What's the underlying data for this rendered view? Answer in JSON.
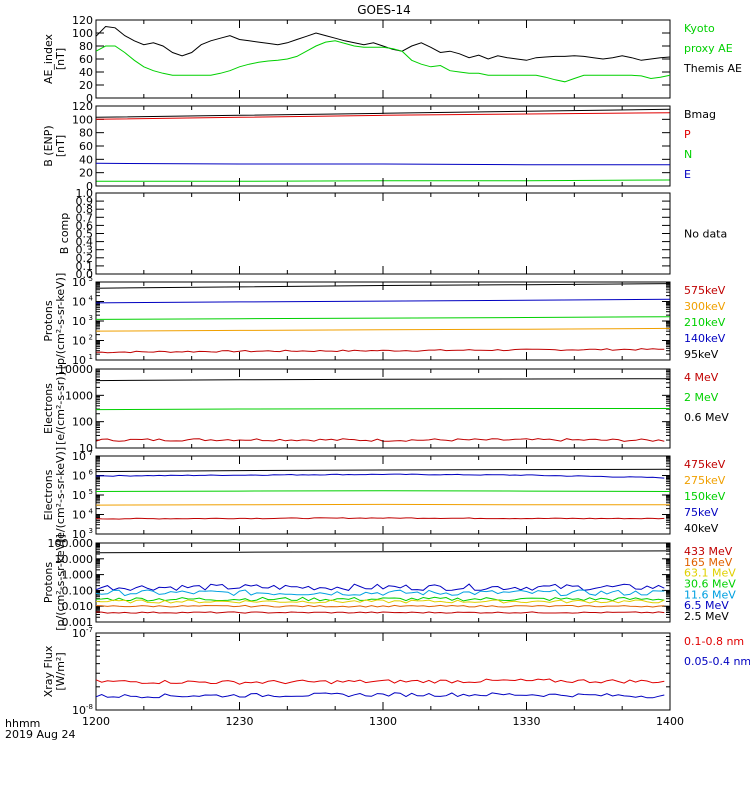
{
  "title": "GOES-14",
  "footer": {
    "line1": "hhmm",
    "line2": "2019 Aug 24"
  },
  "x_axis": {
    "ticks": [
      "1200",
      "1230",
      "1300",
      "1330",
      "1400"
    ],
    "range_minutes": [
      0,
      120
    ]
  },
  "chart_data": [
    {
      "id": "ae",
      "type": "line",
      "ylabel": [
        "AE_index",
        "[nT]"
      ],
      "yscale": "linear",
      "ylim": [
        0,
        120
      ],
      "ticks": [
        0,
        20,
        40,
        60,
        80,
        100,
        120
      ],
      "tick_labels": [
        "0",
        "20",
        "40",
        "60",
        "80",
        "100",
        "120"
      ],
      "legend": [
        {
          "text": "Kyoto",
          "color": "#00d000"
        },
        {
          "text": "proxy AE",
          "color": "#00d000"
        },
        {
          "text": "Themis AE",
          "color": "#000000"
        }
      ],
      "series": [
        {
          "name": "Themis AE",
          "color": "#000000",
          "x": [
            0,
            2,
            4,
            6,
            8,
            10,
            12,
            14,
            16,
            18,
            20,
            22,
            24,
            26,
            28,
            30,
            32,
            34,
            36,
            38,
            40,
            42,
            44,
            46,
            48,
            50,
            52,
            54,
            56,
            58,
            60,
            62,
            64,
            66,
            68,
            70,
            72,
            74,
            76,
            78,
            80,
            82,
            84,
            86,
            88,
            90,
            92,
            94,
            96,
            98,
            100,
            102,
            104,
            106,
            108,
            110,
            112,
            114,
            116,
            118,
            120
          ],
          "y": [
            95,
            110,
            108,
            96,
            88,
            82,
            85,
            80,
            70,
            65,
            70,
            82,
            88,
            92,
            96,
            90,
            88,
            86,
            84,
            82,
            85,
            90,
            95,
            100,
            96,
            92,
            88,
            85,
            82,
            85,
            80,
            75,
            72,
            80,
            85,
            78,
            70,
            72,
            68,
            62,
            66,
            60,
            65,
            62,
            60,
            58,
            62,
            63,
            64,
            64,
            65,
            64,
            62,
            60,
            62,
            65,
            62,
            58,
            60,
            62,
            63
          ]
        },
        {
          "name": "Kyoto proxy AE",
          "color": "#00d000",
          "x": [
            0,
            2,
            4,
            6,
            8,
            10,
            12,
            14,
            16,
            18,
            20,
            22,
            24,
            26,
            28,
            30,
            32,
            34,
            36,
            38,
            40,
            42,
            44,
            46,
            48,
            50,
            52,
            54,
            56,
            58,
            60,
            62,
            64,
            66,
            68,
            70,
            72,
            74,
            76,
            78,
            80,
            82,
            84,
            86,
            88,
            90,
            92,
            94,
            96,
            98,
            100,
            102,
            104,
            106,
            108,
            110,
            112,
            114,
            116,
            118,
            120
          ],
          "y": [
            72,
            80,
            80,
            70,
            58,
            48,
            42,
            38,
            35,
            35,
            35,
            35,
            35,
            38,
            42,
            48,
            52,
            55,
            57,
            58,
            60,
            64,
            72,
            80,
            86,
            88,
            84,
            80,
            78,
            78,
            78,
            76,
            72,
            58,
            52,
            48,
            50,
            42,
            40,
            38,
            38,
            35,
            35,
            35,
            35,
            35,
            35,
            32,
            28,
            25,
            30,
            35,
            35,
            35,
            35,
            35,
            35,
            34,
            30,
            32,
            35
          ]
        }
      ]
    },
    {
      "id": "bfield",
      "type": "line",
      "ylabel": [
        "B (ENP)",
        "[nT]"
      ],
      "yscale": "linear",
      "ylim": [
        0,
        120
      ],
      "ticks": [
        0,
        20,
        40,
        60,
        80,
        100,
        120
      ],
      "tick_labels": [
        "0",
        "20",
        "40",
        "60",
        "80",
        "100",
        "120"
      ],
      "legend": [
        {
          "text": "Bmag",
          "color": "#000000"
        },
        {
          "text": "P",
          "color": "#e00000"
        },
        {
          "text": "N",
          "color": "#00d000"
        },
        {
          "text": "E",
          "color": "#0000c0"
        }
      ],
      "series": [
        {
          "name": "Bmag",
          "color": "#000000",
          "x": [
            0,
            30,
            60,
            90,
            120
          ],
          "y": [
            103,
            106,
            109,
            112,
            115
          ]
        },
        {
          "name": "P",
          "color": "#e00000",
          "x": [
            0,
            30,
            60,
            90,
            120
          ],
          "y": [
            100,
            103,
            106,
            108,
            110
          ]
        },
        {
          "name": "N",
          "color": "#00d000",
          "x": [
            0,
            30,
            60,
            90,
            120
          ],
          "y": [
            7,
            7,
            8,
            8,
            9
          ]
        },
        {
          "name": "E",
          "color": "#0000c0",
          "x": [
            0,
            30,
            60,
            90,
            120
          ],
          "y": [
            34,
            33,
            33,
            32,
            32
          ]
        }
      ]
    },
    {
      "id": "bcomp",
      "type": "line",
      "ylabel": [
        "B comp"
      ],
      "yscale": "linear",
      "ylim": [
        0,
        1
      ],
      "ticks": [
        0,
        0.1,
        0.2,
        0.3,
        0.4,
        0.5,
        0.6,
        0.7,
        0.8,
        0.9,
        1.0
      ],
      "tick_labels": [
        "0.0",
        "0.1",
        "0.2",
        "0.3",
        "0.4",
        "0.5",
        "0.6",
        "0.7",
        "0.8",
        "0.9",
        "1.0"
      ],
      "legend": [
        {
          "text": "No data",
          "color": "#000000"
        }
      ],
      "series": []
    },
    {
      "id": "protons1",
      "type": "line",
      "ylabel": [
        "Protons",
        "[p/(cm²-s-sr-keV)]"
      ],
      "yscale": "log",
      "ylim": [
        1,
        5
      ],
      "ticks": [
        1,
        2,
        3,
        4,
        5
      ],
      "tick_labels": [
        "10",
        "10",
        "10",
        "10",
        "10"
      ],
      "tick_exponents": [
        "1",
        "2",
        "3",
        "4",
        "5"
      ],
      "legend": [
        {
          "text": "575keV",
          "color": "#c00000"
        },
        {
          "text": "300keV",
          "color": "#f0a000"
        },
        {
          "text": "210keV",
          "color": "#00d000"
        },
        {
          "text": "140keV",
          "color": "#0000c0"
        },
        {
          "text": "95keV",
          "color": "#000000"
        }
      ],
      "series": [
        {
          "name": "95keV",
          "color": "#000000",
          "x": [
            0,
            30,
            60,
            90,
            120
          ],
          "y": [
            4.68,
            4.75,
            4.82,
            4.86,
            4.92
          ]
        },
        {
          "name": "140keV",
          "color": "#0000c0",
          "x": [
            0,
            30,
            60,
            90,
            120
          ],
          "y": [
            3.93,
            3.98,
            4.02,
            4.06,
            4.12
          ]
        },
        {
          "name": "210keV",
          "color": "#00d000",
          "x": [
            0,
            30,
            60,
            90,
            120
          ],
          "y": [
            3.08,
            3.12,
            3.15,
            3.18,
            3.22
          ]
        },
        {
          "name": "300keV",
          "color": "#f0a000",
          "x": [
            0,
            30,
            60,
            90,
            120
          ],
          "y": [
            2.48,
            2.52,
            2.55,
            2.58,
            2.62
          ]
        },
        {
          "name": "575keV",
          "color": "#c00000",
          "x": [
            0,
            30,
            60,
            90,
            120
          ],
          "y": [
            1.4,
            1.45,
            1.48,
            1.52,
            1.55
          ],
          "noise": 0.04
        }
      ]
    },
    {
      "id": "electrons1",
      "type": "line",
      "ylabel": [
        "Electrons",
        "[e/(cm²-s-sr)]"
      ],
      "yscale": "log",
      "ylim": [
        1,
        4
      ],
      "ticks": [
        1,
        2,
        3,
        4
      ],
      "tick_labels": [
        "10",
        "100",
        "1000",
        "10000"
      ],
      "legend": [
        {
          "text": "4 MeV",
          "color": "#c00000"
        },
        {
          "text": "2 MeV",
          "color": "#00d000"
        },
        {
          "text": "0.6 MeV",
          "color": "#000000"
        }
      ],
      "series": [
        {
          "name": "0.6 MeV",
          "color": "#000000",
          "x": [
            0,
            30,
            60,
            90,
            120
          ],
          "y": [
            3.56,
            3.59,
            3.61,
            3.62,
            3.63
          ]
        },
        {
          "name": "2 MeV",
          "color": "#00d000",
          "x": [
            0,
            30,
            60,
            90,
            120
          ],
          "y": [
            2.46,
            2.48,
            2.49,
            2.5,
            2.5
          ]
        },
        {
          "name": "4 MeV",
          "color": "#c00000",
          "x": [
            0,
            30,
            60,
            90,
            120
          ],
          "y": [
            1.3,
            1.32,
            1.3,
            1.31,
            1.29
          ],
          "noise": 0.05
        }
      ]
    },
    {
      "id": "electrons2",
      "type": "line",
      "ylabel": [
        "Electrons",
        "[e/(cm²-s-sr-keV)]"
      ],
      "yscale": "log",
      "ylim": [
        3,
        7
      ],
      "ticks": [
        3,
        4,
        5,
        6,
        7
      ],
      "tick_labels": [
        "10",
        "10",
        "10",
        "10",
        "10"
      ],
      "tick_exponents": [
        "3",
        "4",
        "5",
        "6",
        "7"
      ],
      "legend": [
        {
          "text": "475keV",
          "color": "#c00000"
        },
        {
          "text": "275keV",
          "color": "#f0a000"
        },
        {
          "text": "150keV",
          "color": "#00d000"
        },
        {
          "text": "75keV",
          "color": "#0000c0"
        },
        {
          "text": "40keV",
          "color": "#000000"
        }
      ],
      "series": [
        {
          "name": "40keV",
          "color": "#000000",
          "x": [
            0,
            30,
            60,
            90,
            120
          ],
          "y": [
            6.2,
            6.25,
            6.28,
            6.3,
            6.32
          ]
        },
        {
          "name": "75keV",
          "color": "#0000c0",
          "x": [
            0,
            30,
            60,
            90,
            120
          ],
          "y": [
            5.98,
            6.02,
            6.06,
            6.02,
            5.88
          ],
          "noise": 0.02
        },
        {
          "name": "150keV",
          "color": "#00d000",
          "x": [
            0,
            30,
            60,
            90,
            120
          ],
          "y": [
            5.18,
            5.2,
            5.22,
            5.2,
            5.18
          ]
        },
        {
          "name": "275keV",
          "color": "#f0a000",
          "x": [
            0,
            30,
            60,
            90,
            120
          ],
          "y": [
            4.48,
            4.5,
            4.52,
            4.5,
            4.5
          ]
        },
        {
          "name": "475keV",
          "color": "#c00000",
          "x": [
            0,
            30,
            60,
            90,
            120
          ],
          "y": [
            3.78,
            3.8,
            3.82,
            3.8,
            3.79
          ],
          "noise": 0.02
        }
      ]
    },
    {
      "id": "protons2",
      "type": "line",
      "ylabel": [
        "Protons",
        "[p/(cm²-s-sr-keV)]"
      ],
      "yscale": "log",
      "ylim": [
        -3,
        2
      ],
      "ticks": [
        -3,
        -2,
        -1,
        0,
        1,
        2
      ],
      "tick_labels": [
        "0.001",
        "0.010",
        "0.100",
        "1.000",
        "10.000",
        "100.000"
      ],
      "legend": [
        {
          "text": "433 MeV",
          "color": "#c00000"
        },
        {
          "text": "165 MeV",
          "color": "#e06000"
        },
        {
          "text": "63.1 MeV",
          "color": "#e0d000"
        },
        {
          "text": "30.6 MeV",
          "color": "#00d000"
        },
        {
          "text": "11.6 MeV",
          "color": "#00a0e0"
        },
        {
          "text": "6.5 MeV",
          "color": "#0000c0"
        },
        {
          "text": "2.5 MeV",
          "color": "#000000"
        }
      ],
      "series": [
        {
          "name": "2.5 MeV",
          "color": "#000000",
          "x": [
            0,
            30,
            60,
            90,
            120
          ],
          "y": [
            1.38,
            1.42,
            1.45,
            1.48,
            1.5
          ]
        },
        {
          "name": "6.5 MeV",
          "color": "#0000c0",
          "x": [
            0,
            30,
            60,
            90,
            120
          ],
          "y": [
            -0.8,
            -0.8,
            -0.8,
            -0.8,
            -0.8
          ],
          "noise": 0.2
        },
        {
          "name": "11.6 MeV",
          "color": "#00a0e0",
          "x": [
            0,
            30,
            60,
            90,
            120
          ],
          "y": [
            -1.15,
            -1.15,
            -1.15,
            -1.15,
            -1.15
          ],
          "noise": 0.18
        },
        {
          "name": "30.6 MeV",
          "color": "#00d000",
          "x": [
            0,
            30,
            60,
            90,
            120
          ],
          "y": [
            -1.55,
            -1.55,
            -1.55,
            -1.55,
            -1.55
          ],
          "noise": 0.12
        },
        {
          "name": "63.1 MeV",
          "color": "#e0d000",
          "x": [
            0,
            30,
            60,
            90,
            120
          ],
          "y": [
            -1.7,
            -1.7,
            -1.7,
            -1.7,
            -1.7
          ],
          "noise": 0.1
        },
        {
          "name": "165 MeV",
          "color": "#e06000",
          "x": [
            0,
            30,
            60,
            90,
            120
          ],
          "y": [
            -2.0,
            -2.0,
            -2.0,
            -2.0,
            -2.0
          ],
          "noise": 0.05
        },
        {
          "name": "433 MeV",
          "color": "#c00000",
          "x": [
            0,
            30,
            60,
            90,
            120
          ],
          "y": [
            -2.4,
            -2.4,
            -2.4,
            -2.4,
            -2.4
          ],
          "noise": 0.04
        }
      ]
    },
    {
      "id": "xray",
      "type": "line",
      "ylabel": [
        "Xray Flux",
        "[W/m²]"
      ],
      "yscale": "log",
      "ylim": [
        -8,
        -7
      ],
      "ticks": [
        -8,
        -7
      ],
      "tick_labels": [
        "10",
        "10"
      ],
      "tick_exponents": [
        "-8",
        "-7"
      ],
      "legend": [
        {
          "text": "0.1-0.8 nm",
          "color": "#e00000"
        },
        {
          "text": "0.05-0.4 nm",
          "color": "#0000c0"
        }
      ],
      "series": [
        {
          "name": "0.1-0.8 nm",
          "color": "#e00000",
          "x": [
            0,
            30,
            60,
            90,
            120
          ],
          "y": [
            -7.63,
            -7.64,
            -7.63,
            -7.62,
            -7.63
          ],
          "noise": 0.025
        },
        {
          "name": "0.05-0.4 nm",
          "color": "#0000c0",
          "x": [
            0,
            30,
            60,
            90,
            120
          ],
          "y": [
            -7.82,
            -7.81,
            -7.8,
            -7.8,
            -7.82
          ],
          "noise": 0.025
        }
      ]
    }
  ]
}
